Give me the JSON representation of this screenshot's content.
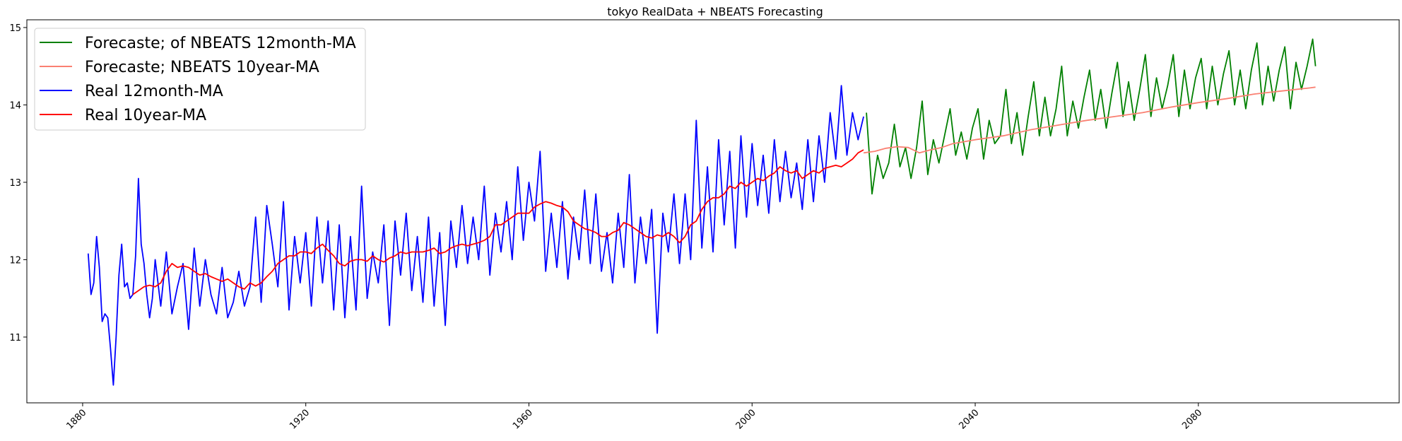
{
  "chart_data": {
    "type": "line",
    "title": "tokyo RealData + NBEATS Forecasting",
    "xlabel": "",
    "ylabel": "",
    "xlim": [
      1870,
      2116
    ],
    "ylim": [
      10.15,
      15.1
    ],
    "x_ticks": [
      1880,
      1920,
      1960,
      2000,
      2040,
      2080
    ],
    "x_tick_labels": [
      "1880",
      "1920",
      "1960",
      "2000",
      "2040",
      "2080"
    ],
    "y_ticks": [
      11,
      12,
      13,
      14,
      15
    ],
    "y_tick_labels": [
      "11",
      "12",
      "13",
      "14",
      "15"
    ],
    "grid": false,
    "legend_placement": "top-left",
    "series": [
      {
        "name": "Forecaste; of NBEATS 12month-MA",
        "color": "#008000",
        "x": [
          2020.5,
          2021.5,
          2022.5,
          2023.5,
          2024.5,
          2025.5,
          2026.5,
          2027.5,
          2028.5,
          2029.5,
          2030.5,
          2031.5,
          2032.5,
          2033.5,
          2034.5,
          2035.5,
          2036.5,
          2037.5,
          2038.5,
          2039.5,
          2040.5,
          2041.5,
          2042.5,
          2043.5,
          2044.5,
          2045.5,
          2046.5,
          2047.5,
          2048.5,
          2049.5,
          2050.5,
          2051.5,
          2052.5,
          2053.5,
          2054.5,
          2055.5,
          2056.5,
          2057.5,
          2058.5,
          2059.5,
          2060.5,
          2061.5,
          2062.5,
          2063.5,
          2064.5,
          2065.5,
          2066.5,
          2067.5,
          2068.5,
          2069.5,
          2070.5,
          2071.5,
          2072.5,
          2073.5,
          2074.5,
          2075.5,
          2076.5,
          2077.5,
          2078.5,
          2079.5,
          2080.5,
          2081.5,
          2082.5,
          2083.5,
          2084.5,
          2085.5,
          2086.5,
          2087.5,
          2088.5,
          2089.5,
          2090.5,
          2091.5,
          2092.5,
          2093.5,
          2094.5,
          2095.5,
          2096.5,
          2097.5,
          2098.5,
          2099.5,
          2100.5,
          2101.0
        ],
        "values": [
          13.9,
          12.85,
          13.35,
          13.05,
          13.25,
          13.75,
          13.2,
          13.45,
          13.05,
          13.45,
          14.05,
          13.1,
          13.55,
          13.25,
          13.6,
          13.95,
          13.35,
          13.65,
          13.3,
          13.7,
          13.95,
          13.3,
          13.8,
          13.5,
          13.6,
          14.2,
          13.5,
          13.9,
          13.35,
          13.85,
          14.3,
          13.6,
          14.1,
          13.6,
          13.95,
          14.5,
          13.6,
          14.05,
          13.7,
          14.1,
          14.45,
          13.8,
          14.2,
          13.7,
          14.15,
          14.55,
          13.85,
          14.3,
          13.8,
          14.2,
          14.65,
          13.85,
          14.35,
          13.95,
          14.25,
          14.65,
          13.85,
          14.45,
          13.95,
          14.35,
          14.6,
          13.95,
          14.5,
          14.0,
          14.4,
          14.7,
          14.0,
          14.45,
          13.95,
          14.45,
          14.8,
          14.0,
          14.5,
          14.05,
          14.45,
          14.75,
          13.95,
          14.55,
          14.2,
          14.5,
          14.85,
          14.5
        ]
      },
      {
        "name": "Forecaste; NBEATS 10year-MA",
        "color": "#fa8072",
        "x": [
          2020,
          2022,
          2024,
          2026,
          2028,
          2030,
          2032,
          2034,
          2036,
          2040,
          2045,
          2050,
          2055,
          2060,
          2065,
          2070,
          2075,
          2080,
          2085,
          2090,
          2095,
          2100,
          2101
        ],
        "values": [
          13.38,
          13.4,
          13.44,
          13.46,
          13.45,
          13.38,
          13.42,
          13.45,
          13.5,
          13.55,
          13.6,
          13.68,
          13.74,
          13.8,
          13.85,
          13.9,
          13.97,
          14.03,
          14.08,
          14.14,
          14.18,
          14.22,
          14.23
        ]
      },
      {
        "name": "Real 12month-MA",
        "color": "#0000ff",
        "x": [
          1881.0,
          1881.5,
          1882.0,
          1882.5,
          1883.0,
          1883.5,
          1884.0,
          1884.5,
          1885.0,
          1885.5,
          1886.0,
          1886.5,
          1887.0,
          1887.5,
          1888.0,
          1888.5,
          1889.0,
          1889.5,
          1890.0,
          1890.5,
          1891.0,
          1891.5,
          1892.0,
          1892.5,
          1893.0,
          1894.0,
          1895.0,
          1896.0,
          1897.0,
          1898.0,
          1899.0,
          1900.0,
          1901.0,
          1902.0,
          1903.0,
          1904.0,
          1905.0,
          1906.0,
          1907.0,
          1908.0,
          1909.0,
          1910.0,
          1911.0,
          1912.0,
          1913.0,
          1914.0,
          1915.0,
          1916.0,
          1917.0,
          1918.0,
          1919.0,
          1920.0,
          1921.0,
          1922.0,
          1923.0,
          1924.0,
          1925.0,
          1926.0,
          1927.0,
          1928.0,
          1929.0,
          1930.0,
          1931.0,
          1932.0,
          1933.0,
          1934.0,
          1935.0,
          1936.0,
          1937.0,
          1938.0,
          1939.0,
          1940.0,
          1941.0,
          1942.0,
          1943.0,
          1944.0,
          1945.0,
          1946.0,
          1947.0,
          1948.0,
          1949.0,
          1950.0,
          1951.0,
          1952.0,
          1953.0,
          1954.0,
          1955.0,
          1956.0,
          1957.0,
          1958.0,
          1959.0,
          1960.0,
          1961.0,
          1962.0,
          1963.0,
          1964.0,
          1965.0,
          1966.0,
          1967.0,
          1968.0,
          1969.0,
          1970.0,
          1971.0,
          1972.0,
          1973.0,
          1974.0,
          1975.0,
          1976.0,
          1977.0,
          1978.0,
          1979.0,
          1980.0,
          1981.0,
          1982.0,
          1983.0,
          1984.0,
          1985.0,
          1986.0,
          1987.0,
          1988.0,
          1989.0,
          1990.0,
          1991.0,
          1992.0,
          1993.0,
          1994.0,
          1995.0,
          1996.0,
          1997.0,
          1998.0,
          1999.0,
          2000.0,
          2001.0,
          2002.0,
          2003.0,
          2004.0,
          2005.0,
          2006.0,
          2007.0,
          2008.0,
          2009.0,
          2010.0,
          2011.0,
          2012.0,
          2013.0,
          2014.0,
          2015.0,
          2016.0,
          2017.0,
          2018.0,
          2019.0,
          2020.0
        ],
        "values": [
          12.08,
          11.55,
          11.7,
          12.3,
          11.9,
          11.2,
          11.3,
          11.25,
          10.85,
          10.38,
          11.0,
          11.8,
          12.2,
          11.65,
          11.7,
          11.5,
          11.55,
          12.05,
          13.05,
          12.2,
          11.95,
          11.55,
          11.25,
          11.5,
          12.0,
          11.4,
          12.1,
          11.3,
          11.65,
          11.95,
          11.1,
          12.15,
          11.4,
          12.0,
          11.55,
          11.3,
          11.9,
          11.25,
          11.45,
          11.85,
          11.4,
          11.65,
          12.55,
          11.45,
          12.7,
          12.2,
          11.65,
          12.75,
          11.35,
          12.3,
          11.7,
          12.35,
          11.4,
          12.55,
          11.7,
          12.5,
          11.35,
          12.45,
          11.25,
          12.3,
          11.35,
          12.95,
          11.5,
          12.1,
          11.7,
          12.45,
          11.15,
          12.5,
          11.8,
          12.6,
          11.6,
          12.3,
          11.45,
          12.55,
          11.4,
          12.35,
          11.15,
          12.5,
          11.9,
          12.7,
          11.95,
          12.55,
          12.0,
          12.95,
          11.8,
          12.6,
          12.1,
          12.75,
          12.0,
          13.2,
          12.25,
          13.0,
          12.5,
          13.4,
          11.85,
          12.6,
          11.9,
          12.75,
          11.75,
          12.55,
          12.0,
          12.9,
          11.95,
          12.85,
          11.85,
          12.35,
          11.7,
          12.6,
          11.9,
          13.1,
          11.7,
          12.55,
          11.95,
          12.65,
          11.05,
          12.6,
          12.1,
          12.85,
          11.95,
          12.85,
          12.0,
          13.8,
          12.15,
          13.2,
          12.1,
          13.55,
          12.45,
          13.4,
          12.15,
          13.6,
          12.55,
          13.5,
          12.7,
          13.35,
          12.6,
          13.55,
          12.75,
          13.4,
          12.8,
          13.25,
          12.65,
          13.55,
          12.75,
          13.6,
          13.0,
          13.9,
          13.3,
          14.25,
          13.35,
          13.9,
          13.55,
          13.85
        ]
      },
      {
        "name": "Real 10year-MA",
        "color": "#ff0000",
        "x": [
          1889.0,
          1890.0,
          1891.0,
          1892.0,
          1893.0,
          1894.0,
          1895.0,
          1896.0,
          1897.0,
          1898.0,
          1899.0,
          1900.0,
          1901.0,
          1902.0,
          1903.0,
          1904.0,
          1905.0,
          1906.0,
          1907.0,
          1908.0,
          1909.0,
          1910.0,
          1911.0,
          1912.0,
          1913.0,
          1914.0,
          1915.0,
          1916.0,
          1917.0,
          1918.0,
          1919.0,
          1920.0,
          1921.0,
          1922.0,
          1923.0,
          1924.0,
          1925.0,
          1926.0,
          1927.0,
          1928.0,
          1929.0,
          1930.0,
          1931.0,
          1932.0,
          1933.0,
          1934.0,
          1935.0,
          1936.0,
          1937.0,
          1938.0,
          1939.0,
          1940.0,
          1941.0,
          1942.0,
          1943.0,
          1944.0,
          1945.0,
          1946.0,
          1947.0,
          1948.0,
          1949.0,
          1950.0,
          1951.0,
          1952.0,
          1953.0,
          1954.0,
          1955.0,
          1956.0,
          1957.0,
          1958.0,
          1959.0,
          1960.0,
          1961.0,
          1962.0,
          1963.0,
          1964.0,
          1965.0,
          1966.0,
          1967.0,
          1968.0,
          1969.0,
          1970.0,
          1971.0,
          1972.0,
          1973.0,
          1974.0,
          1975.0,
          1976.0,
          1977.0,
          1978.0,
          1979.0,
          1980.0,
          1981.0,
          1982.0,
          1983.0,
          1984.0,
          1985.0,
          1986.0,
          1987.0,
          1988.0,
          1989.0,
          1990.0,
          1991.0,
          1992.0,
          1993.0,
          1994.0,
          1995.0,
          1996.0,
          1997.0,
          1998.0,
          1999.0,
          2000.0,
          2001.0,
          2002.0,
          2003.0,
          2004.0,
          2005.0,
          2006.0,
          2007.0,
          2008.0,
          2009.0,
          2010.0,
          2011.0,
          2012.0,
          2013.0,
          2014.0,
          2015.0,
          2016.0,
          2017.0,
          2018.0,
          2019.0,
          2020.0
        ],
        "values": [
          11.55,
          11.6,
          11.65,
          11.67,
          11.65,
          11.7,
          11.85,
          11.95,
          11.9,
          11.92,
          11.9,
          11.85,
          11.8,
          11.82,
          11.78,
          11.75,
          11.72,
          11.75,
          11.7,
          11.65,
          11.62,
          11.7,
          11.66,
          11.7,
          11.78,
          11.85,
          11.95,
          12.0,
          12.05,
          12.05,
          12.1,
          12.1,
          12.08,
          12.15,
          12.2,
          12.12,
          12.05,
          11.95,
          11.92,
          11.98,
          12.0,
          12.0,
          11.98,
          12.05,
          12.0,
          11.97,
          12.02,
          12.05,
          12.1,
          12.08,
          12.1,
          12.1,
          12.1,
          12.12,
          12.15,
          12.08,
          12.1,
          12.15,
          12.18,
          12.2,
          12.18,
          12.2,
          12.22,
          12.25,
          12.3,
          12.45,
          12.45,
          12.5,
          12.55,
          12.6,
          12.6,
          12.6,
          12.68,
          12.72,
          12.75,
          12.73,
          12.7,
          12.68,
          12.62,
          12.5,
          12.45,
          12.4,
          12.38,
          12.35,
          12.3,
          12.3,
          12.35,
          12.38,
          12.48,
          12.45,
          12.4,
          12.35,
          12.3,
          12.28,
          12.32,
          12.3,
          12.35,
          12.3,
          12.22,
          12.3,
          12.45,
          12.5,
          12.65,
          12.75,
          12.8,
          12.8,
          12.85,
          12.95,
          12.92,
          13.0,
          12.95,
          13.0,
          13.05,
          13.02,
          13.08,
          13.12,
          13.2,
          13.15,
          13.12,
          13.15,
          13.05,
          13.1,
          13.15,
          13.12,
          13.18,
          13.2,
          13.22,
          13.2,
          13.25,
          13.3,
          13.38,
          13.42
        ]
      }
    ]
  }
}
